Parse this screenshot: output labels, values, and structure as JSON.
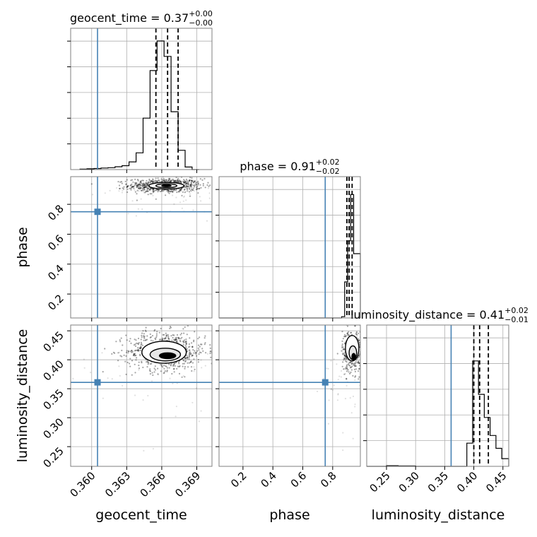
{
  "chart_data": {
    "type": "corner",
    "parameters": [
      "geocent_time",
      "phase",
      "luminosity_distance"
    ],
    "axis_labels": [
      "geocent_time",
      "phase",
      "luminosity_distance"
    ],
    "ranges": {
      "geocent_time": [
        0.3582,
        0.3703
      ],
      "phase": [
        0.04,
        0.985
      ],
      "luminosity_distance": [
        0.216,
        0.46
      ]
    },
    "ticks": {
      "geocent_time": [
        0.36,
        0.363,
        0.366,
        0.369
      ],
      "phase": [
        0.2,
        0.4,
        0.6,
        0.8
      ],
      "luminosity_distance": [
        0.25,
        0.3,
        0.35,
        0.4,
        0.45
      ]
    },
    "tick_labels": {
      "geocent_time": [
        "0.360",
        "0.363",
        "0.366",
        "0.369"
      ],
      "phase": [
        "0.2",
        "0.4",
        "0.6",
        "0.8"
      ],
      "luminosity_distance": [
        "0.25",
        "0.30",
        "0.35",
        "0.40",
        "0.45"
      ]
    },
    "truths": {
      "geocent_time": 0.3605,
      "phase": 0.75,
      "luminosity_distance": 0.361
    },
    "titles": [
      {
        "param": "geocent_time",
        "main": "geocent_time = 0.37",
        "sup": "+0.00",
        "sub": "−0.00"
      },
      {
        "param": "phase",
        "main": "phase = 0.91",
        "sup": "+0.02",
        "sub": "−0.02"
      },
      {
        "param": "luminosity_distance",
        "main": "luminosity_distance = 0.41",
        "sup": "+0.02",
        "sub": "−0.01"
      }
    ],
    "quantiles": {
      "geocent_time": [
        0.3655,
        0.3665,
        0.3674
      ],
      "phase": [
        0.895,
        0.91,
        0.93
      ],
      "luminosity_distance": [
        0.4,
        0.41,
        0.425
      ]
    },
    "histograms": {
      "geocent_time": {
        "edges": [
          0.359,
          0.3596,
          0.3602,
          0.3608,
          0.3614,
          0.362,
          0.3626,
          0.3632,
          0.3638,
          0.3644,
          0.365,
          0.3656,
          0.3662,
          0.3668,
          0.3674,
          0.368,
          0.3686,
          0.3692
        ],
        "counts": [
          0.004,
          0.006,
          0.008,
          0.012,
          0.015,
          0.022,
          0.03,
          0.06,
          0.13,
          0.4,
          0.77,
          1.0,
          0.88,
          0.45,
          0.15,
          0.02,
          0.0
        ]
      },
      "phase": {
        "edges": [
          0.04,
          0.86,
          0.88,
          0.9,
          0.92,
          0.94,
          0.985
        ],
        "counts": [
          0.0,
          0.01,
          0.28,
          0.6,
          0.96,
          0.5
        ]
      },
      "luminosity_distance": {
        "edges": [
          0.216,
          0.25,
          0.27,
          0.3,
          0.35,
          0.388,
          0.398,
          0.408,
          0.418,
          0.428,
          0.438,
          0.448,
          0.46
        ],
        "counts": [
          0.0,
          0.005,
          0.003,
          0.0,
          0.0,
          0.18,
          0.82,
          0.56,
          0.38,
          0.24,
          0.14,
          0.06
        ]
      }
    },
    "scatter_cores": [
      {
        "x": "geocent_time",
        "y": "phase",
        "cx": 0.3663,
        "cy": 0.925,
        "sx": 0.0012,
        "sy": 0.018,
        "n": 700
      },
      {
        "x": "geocent_time",
        "y": "luminosity_distance",
        "cx": 0.3664,
        "cy": 0.415,
        "sx": 0.0013,
        "sy": 0.013,
        "n": 700
      },
      {
        "x": "phase",
        "y": "luminosity_distance",
        "cx": 0.93,
        "cy": 0.415,
        "sx": 0.025,
        "sy": 0.014,
        "n": 400
      }
    ],
    "contours": [
      {
        "x": "geocent_time",
        "y": "phase",
        "rings": [
          {
            "cx": 0.3664,
            "cy": 0.924,
            "rx": 0.0015,
            "ry": 0.022
          },
          {
            "cx": 0.3664,
            "cy": 0.924,
            "rx": 0.0009,
            "ry": 0.013
          },
          {
            "cx": 0.3664,
            "cy": 0.924,
            "rx": 0.0004,
            "ry": 0.006
          }
        ]
      },
      {
        "x": "geocent_time",
        "y": "luminosity_distance",
        "rings": [
          {
            "cx": 0.3662,
            "cy": 0.413,
            "rx": 0.0019,
            "ry": 0.019
          },
          {
            "cx": 0.3663,
            "cy": 0.409,
            "rx": 0.0013,
            "ry": 0.011
          },
          {
            "cx": 0.3665,
            "cy": 0.407,
            "rx": 0.0007,
            "ry": 0.005
          }
        ]
      },
      {
        "x": "phase",
        "y": "luminosity_distance",
        "rings": [
          {
            "cx": 0.93,
            "cy": 0.42,
            "rx": 0.045,
            "ry": 0.022
          },
          {
            "cx": 0.935,
            "cy": 0.412,
            "rx": 0.025,
            "ry": 0.012
          },
          {
            "cx": 0.94,
            "cy": 0.405,
            "rx": 0.012,
            "ry": 0.006
          }
        ]
      }
    ]
  }
}
